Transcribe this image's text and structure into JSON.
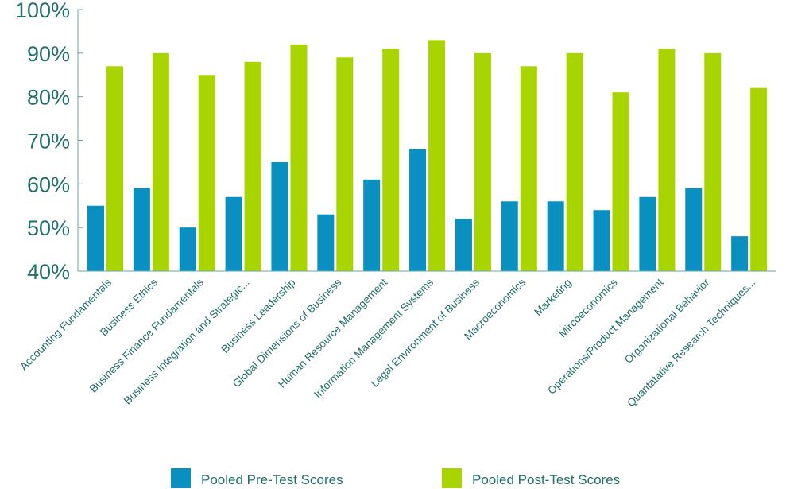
{
  "chart_data": {
    "type": "bar",
    "title": "",
    "xlabel": "",
    "ylabel": "",
    "ylim": [
      40,
      100
    ],
    "yticks": [
      "40%",
      "50%",
      "60%",
      "70%",
      "80%",
      "90%",
      "100%"
    ],
    "categories": [
      "Accounting Fundamentals",
      "Business Ethics",
      "Business Finance Fundamentals",
      "Business Integration and Strategic...",
      "Business Leadership",
      "Global Dimensions of Business",
      "Human Resource Management",
      "Information Management Systems",
      "Legal Environment of Business",
      "Macroeconomics",
      "Marketing",
      "Mircoeconomics",
      "Operations/Product Management",
      "Organizational Behavior",
      "Quantatative Research Techniques..."
    ],
    "series": [
      {
        "name": "Pooled Pre-Test Scores",
        "color": "#0a8fc1",
        "values": [
          55,
          59,
          50,
          57,
          65,
          53,
          61,
          68,
          52,
          56,
          56,
          54,
          57,
          59,
          48
        ]
      },
      {
        "name": "Pooled Post-Test Scores",
        "color": "#a8d400",
        "values": [
          87,
          90,
          85,
          88,
          92,
          89,
          91,
          93,
          90,
          87,
          90,
          81,
          91,
          90,
          82
        ]
      }
    ],
    "legend_position": "bottom",
    "grid": false
  }
}
